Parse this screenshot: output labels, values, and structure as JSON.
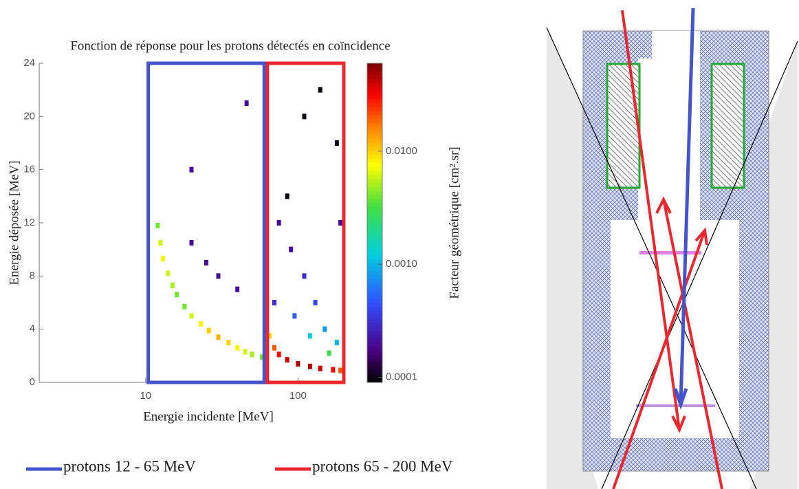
{
  "chart_data": {
    "type": "heatmap",
    "title": "Fonction de réponse pour les protons détectés en coïncidence",
    "x_label": "Energie incidente [MeV]",
    "y_label": "Energie déposée [MeV]",
    "colorbar_label": "Facteur géométrique [cm².sr]",
    "x_log": true,
    "xlim": [
      2,
      200
    ],
    "xticks": [
      10,
      100
    ],
    "ylim": [
      0,
      24
    ],
    "yticks": [
      0,
      4,
      8,
      12,
      16,
      20,
      24
    ],
    "clim": [
      9e-05,
      0.06
    ],
    "cticks": [
      0.0001,
      {
        "value": 0.001,
        "label": "0.0010"
      },
      {
        "value": 0.01,
        "label": "0.0100"
      }
    ],
    "cells": {
      "x": [
        12,
        12.5,
        13,
        14,
        15,
        16,
        18,
        20,
        23,
        26,
        30,
        35,
        40,
        45,
        50,
        58,
        65,
        70,
        75,
        85,
        100,
        120,
        140,
        170,
        190,
        20,
        25,
        30,
        40,
        46,
        20,
        75,
        90,
        110,
        130,
        150,
        180,
        95,
        120,
        160,
        110,
        140,
        180,
        85,
        190,
        70
      ],
      "y": [
        11.8,
        10.5,
        9.3,
        8.2,
        7.3,
        6.6,
        5.7,
        5.0,
        4.4,
        3.9,
        3.4,
        3.0,
        2.6,
        2.3,
        2.1,
        1.9,
        3.5,
        2.6,
        2.1,
        1.7,
        1.4,
        1.2,
        1.05,
        0.95,
        0.9,
        10.5,
        9,
        8,
        7,
        21,
        16,
        12,
        10,
        8,
        6,
        4,
        3,
        5,
        3.5,
        2.2,
        20,
        22,
        18,
        14,
        12,
        6
      ],
      "values": [
        0.004,
        0.006,
        0.008,
        0.006,
        0.005,
        0.004,
        0.004,
        0.006,
        0.008,
        0.01,
        0.012,
        0.01,
        0.008,
        0.006,
        0.005,
        0.004,
        0.01,
        0.02,
        0.03,
        0.04,
        0.045,
        0.045,
        0.04,
        0.03,
        0.02,
        0.0002,
        0.0002,
        0.0002,
        0.0002,
        0.0002,
        0.0002,
        0.0002,
        0.0002,
        0.0003,
        0.0004,
        0.0008,
        0.001,
        0.0005,
        0.0012,
        0.003,
        0.0001,
        0.0001,
        0.0001,
        0.0001,
        0.0002,
        0.0003
      ]
    },
    "regions": [
      {
        "name": "protons 12 - 65 MeV",
        "color": "#4455cc",
        "xrange": [
          10.4,
          60
        ]
      },
      {
        "name": "protons 65 - 200 MeV",
        "color": "#e8282e",
        "xrange": [
          63,
          200
        ]
      }
    ]
  }
}
